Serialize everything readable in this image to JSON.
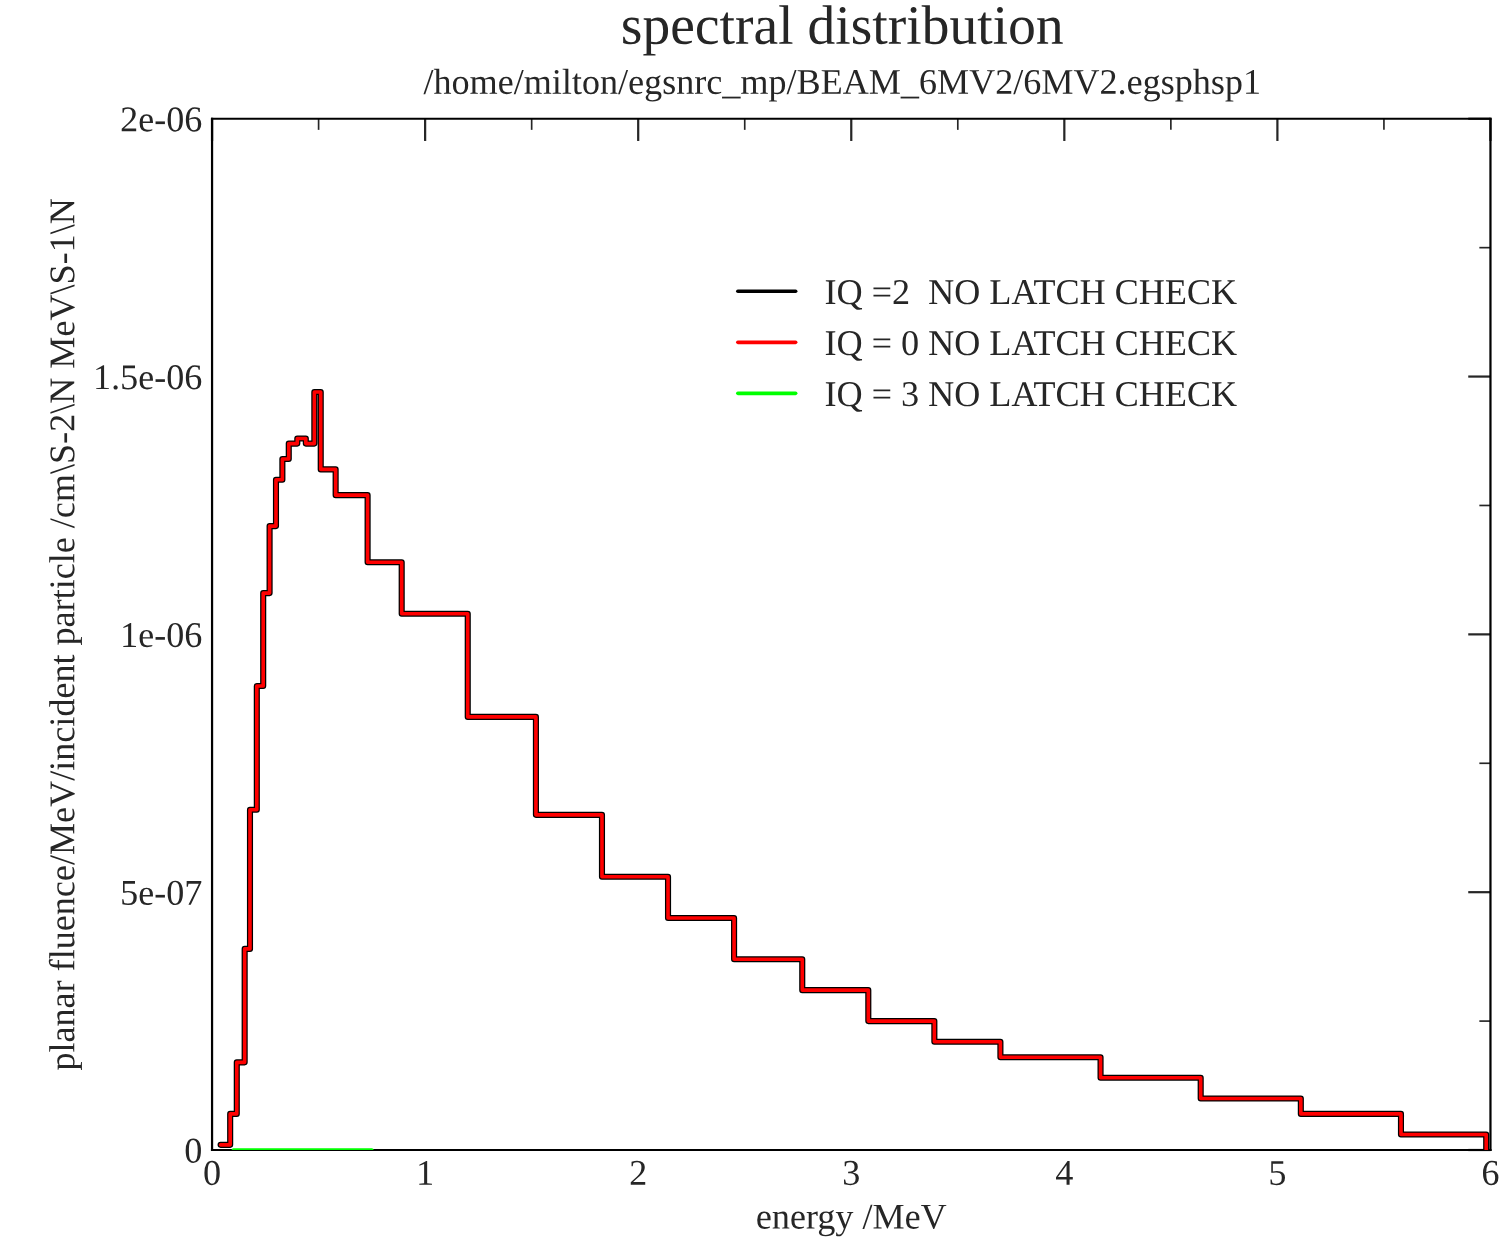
{
  "chart_data": {
    "type": "step",
    "title": "spectral distribution",
    "subtitle": "/home/milton/egsnrc_mp/BEAM_6MV2/6MV2.egsphsp1",
    "xlabel": "energy /MeV",
    "ylabel": "planar fluence/MeV/incident particle /cm\\S-2\\N MeV\\S-1\\N",
    "xlim": [
      0,
      6
    ],
    "xticks": [
      0,
      1,
      2,
      3,
      4,
      5,
      6
    ],
    "ylim": [
      0,
      2e-06
    ],
    "yticks": [
      0,
      {
        "value": 5e-07,
        "label": "5e-07"
      },
      {
        "value": 1e-06,
        "label": "1e-06"
      },
      {
        "value": 1.5e-06,
        "label": "1.5e-06"
      },
      {
        "value": 2e-06,
        "label": "2e-06"
      }
    ],
    "grid": false,
    "legend": "top right",
    "series": [
      {
        "name": "IQ =2  NO LATCH CHECK",
        "color": "#000000",
        "x": [
          0.04,
          0.085,
          0.116,
          0.153,
          0.178,
          0.21,
          0.24,
          0.27,
          0.3,
          0.33,
          0.36,
          0.4,
          0.44,
          0.48,
          0.51,
          0.58,
          0.73,
          0.89,
          1.2,
          1.52,
          1.83,
          2.14,
          2.45,
          2.77,
          3.08,
          3.39,
          3.7,
          4.17,
          4.64,
          5.11,
          5.58,
          5.98
        ],
        "values": [
          1e-08,
          7e-08,
          1.7e-07,
          3.9e-07,
          6.6e-07,
          9e-07,
          1.08e-06,
          1.21e-06,
          1.3e-06,
          1.34e-06,
          1.37e-06,
          1.38e-06,
          1.37e-06,
          1.47e-06,
          1.32e-06,
          1.27e-06,
          1.14e-06,
          1.04e-06,
          8.4e-07,
          6.5e-07,
          5.3e-07,
          4.5e-07,
          3.7e-07,
          3.1e-07,
          2.5e-07,
          2.1e-07,
          1.8e-07,
          1.4e-07,
          1e-07,
          7e-08,
          3e-08,
          0
        ]
      },
      {
        "name": "IQ = 0 NO LATCH CHECK",
        "color": "#ff0000",
        "x": [
          0.04,
          0.085,
          0.116,
          0.153,
          0.178,
          0.21,
          0.24,
          0.27,
          0.3,
          0.33,
          0.36,
          0.4,
          0.44,
          0.48,
          0.51,
          0.58,
          0.73,
          0.89,
          1.2,
          1.52,
          1.83,
          2.14,
          2.45,
          2.77,
          3.08,
          3.39,
          3.7,
          4.17,
          4.64,
          5.11,
          5.58,
          5.98
        ],
        "values": [
          1e-08,
          7e-08,
          1.7e-07,
          3.9e-07,
          6.6e-07,
          9e-07,
          1.08e-06,
          1.21e-06,
          1.3e-06,
          1.34e-06,
          1.37e-06,
          1.38e-06,
          1.37e-06,
          1.47e-06,
          1.32e-06,
          1.27e-06,
          1.14e-06,
          1.04e-06,
          8.4e-07,
          6.5e-07,
          5.3e-07,
          4.5e-07,
          3.7e-07,
          3.1e-07,
          2.5e-07,
          2.1e-07,
          1.8e-07,
          1.4e-07,
          1e-07,
          7e-08,
          3e-08,
          0
        ]
      },
      {
        "name": "IQ = 3 NO LATCH CHECK",
        "color": "#00ff00",
        "x": [
          0.1,
          0.3,
          0.5,
          0.75
        ],
        "values": [
          0,
          0,
          0,
          0
        ]
      }
    ]
  }
}
